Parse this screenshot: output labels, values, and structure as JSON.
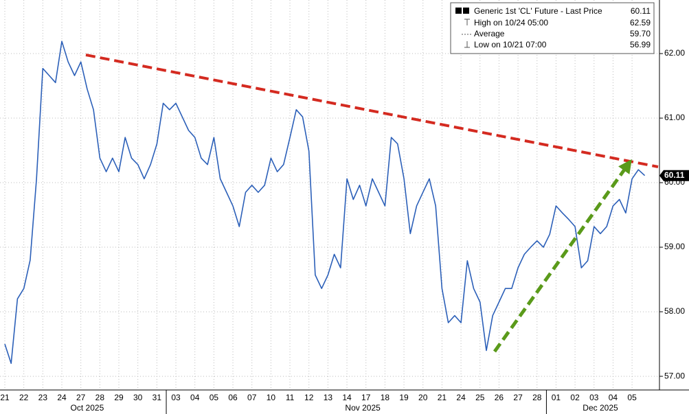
{
  "chart_data": {
    "type": "line",
    "categories": [
      "21",
      null,
      null,
      "22",
      null,
      null,
      "23",
      null,
      null,
      "24",
      null,
      null,
      "27",
      null,
      null,
      "28",
      null,
      null,
      "29",
      null,
      null,
      "30",
      null,
      null,
      "31",
      null,
      null,
      "03",
      null,
      null,
      "04",
      null,
      null,
      "05",
      null,
      null,
      "06",
      null,
      null,
      "07",
      null,
      null,
      "10",
      null,
      null,
      "11",
      null,
      null,
      "12",
      null,
      null,
      "13",
      null,
      null,
      "14",
      null,
      null,
      "17",
      null,
      null,
      "18",
      null,
      null,
      "19",
      null,
      null,
      "20",
      null,
      null,
      "21",
      null,
      null,
      "24",
      null,
      null,
      "25",
      null,
      null,
      "26",
      null,
      null,
      "27",
      null,
      null,
      "28",
      null,
      null,
      "01",
      null,
      null,
      "02",
      null,
      null,
      "03",
      null,
      null,
      "04",
      null,
      null,
      "05",
      null,
      null
    ],
    "months": [
      {
        "label": "Oct 2025",
        "start": 0,
        "end": 26
      },
      {
        "label": "Nov 2025",
        "start": 27,
        "end": 86
      },
      {
        "label": "Dec 2025",
        "start": 87,
        "end": 101
      }
    ],
    "series": [
      {
        "name": "Generic 1st 'CL' Future - Last Price",
        "color": "#2b5fb8",
        "values": [
          57.5,
          57.2,
          58.2,
          58.36,
          58.8,
          60.05,
          61.77,
          61.66,
          61.55,
          62.19,
          61.87,
          61.66,
          61.87,
          61.45,
          61.13,
          60.38,
          60.17,
          60.38,
          60.17,
          60.7,
          60.38,
          60.28,
          60.06,
          60.28,
          60.6,
          61.23,
          61.13,
          61.23,
          61.02,
          60.81,
          60.7,
          60.38,
          60.28,
          60.7,
          60.06,
          59.85,
          59.64,
          59.32,
          59.85,
          59.96,
          59.85,
          59.96,
          60.38,
          60.17,
          60.28,
          60.7,
          61.13,
          61.02,
          60.49,
          58.57,
          58.36,
          58.57,
          58.89,
          58.68,
          60.06,
          59.74,
          59.96,
          59.64,
          60.06,
          59.85,
          59.64,
          60.7,
          60.6,
          60.06,
          59.21,
          59.64,
          59.85,
          60.06,
          59.64,
          58.36,
          57.83,
          57.94,
          57.83,
          58.79,
          58.36,
          58.15,
          57.4,
          57.94,
          58.15,
          58.36,
          58.36,
          58.68,
          58.89,
          59.0,
          59.1,
          59.0,
          59.2,
          59.64,
          59.53,
          59.43,
          59.32,
          58.68,
          58.79,
          59.32,
          59.21,
          59.32,
          59.64,
          59.74,
          59.53,
          60.06,
          60.2,
          60.11
        ]
      }
    ],
    "legend": [
      {
        "name": "Generic 1st 'CL' Future - Last Price",
        "value": "60.11"
      },
      {
        "name": "High on 10/24 05:00",
        "value": "62.59"
      },
      {
        "name": "Average",
        "value": "59.70"
      },
      {
        "name": "Low on 10/21 07:00",
        "value": "56.99"
      }
    ],
    "ylim": [
      56.82,
      62.83
    ],
    "yticks": [
      {
        "value": 57,
        "label": "57.00"
      },
      {
        "value": 58,
        "label": "58.00"
      },
      {
        "value": 59,
        "label": "59.00"
      },
      {
        "value": 60,
        "label": "60.00"
      },
      {
        "value": 61,
        "label": "61.00"
      },
      {
        "value": 62,
        "label": "62.00"
      }
    ],
    "grid": true
  }
}
